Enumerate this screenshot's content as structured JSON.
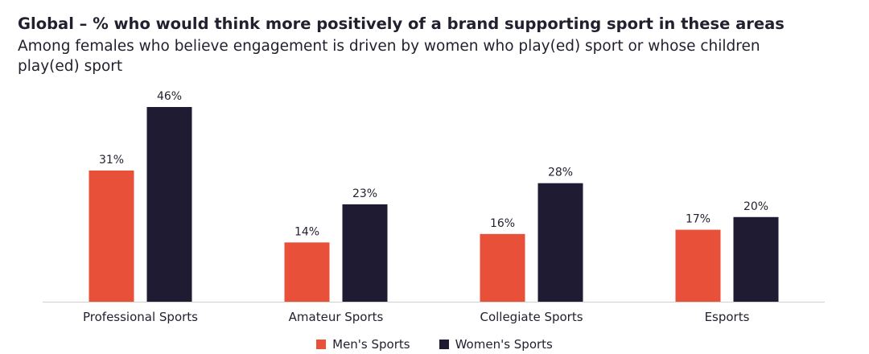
{
  "chart_data": {
    "type": "bar",
    "title": "Global – % who would think more positively of a brand supporting sport in these areas",
    "subtitle": "Among females who believe engagement is driven by women who play(ed) sport or whose children play(ed) sport",
    "categories": [
      "Professional Sports",
      "Amateur Sports",
      "Collegiate Sports",
      "Esports"
    ],
    "series": [
      {
        "name": "Men's Sports",
        "color": "#e8503a",
        "values": [
          31,
          14,
          16,
          17
        ]
      },
      {
        "name": "Women's Sports",
        "color": "#1e1b33",
        "values": [
          46,
          23,
          28,
          20
        ]
      }
    ],
    "value_suffix": "%",
    "ylim": [
      0,
      46
    ],
    "grid": false,
    "legend": "bottom-center"
  }
}
